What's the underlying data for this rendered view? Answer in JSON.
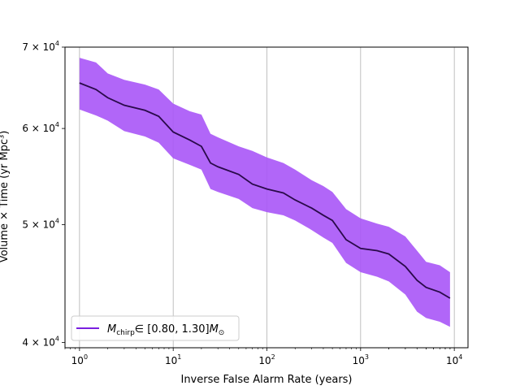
{
  "chart_data": {
    "type": "area",
    "xlabel": "Inverse False Alarm Rate (years)",
    "ylabel": "Volume × Time (yr Mpc³)",
    "x_scale": "log",
    "y_scale": "log",
    "xlim": [
      0.7,
      14000
    ],
    "ylim": [
      39600,
      70000
    ],
    "grid": "x-major",
    "legend_placement": "lower-left",
    "x_ticks": [
      {
        "value": 1,
        "base": "10",
        "exp": "0"
      },
      {
        "value": 10,
        "base": "10",
        "exp": "1"
      },
      {
        "value": 100,
        "base": "10",
        "exp": "2"
      },
      {
        "value": 1000,
        "base": "10",
        "exp": "3"
      },
      {
        "value": 10000,
        "base": "10",
        "exp": "4"
      }
    ],
    "y_ticks": [
      {
        "value": 40000,
        "mant": "4 × 10",
        "exp": "4"
      },
      {
        "value": 50000,
        "mant": "5 × 10",
        "exp": "4"
      },
      {
        "value": 60000,
        "mant": "6 × 10",
        "exp": "4"
      },
      {
        "value": 70000,
        "mant": "7 × 10",
        "exp": "4"
      }
    ],
    "series": [
      {
        "name": "M_chirp ∈ [0.80, 1.30] M_⊙",
        "legend": {
          "symbol": "M",
          "sub": "chirp",
          "range": "∈ [0.80, 1.30]",
          "unit": "M",
          "unit_sub": "⊙"
        },
        "line_color": "#2a0a4a",
        "band_color": "#a855f7",
        "legend_color": "#7a1fe0",
        "x": [
          1,
          1.5,
          2,
          3,
          5,
          7,
          10,
          15,
          20,
          25,
          30,
          50,
          70,
          100,
          150,
          200,
          300,
          400,
          500,
          700,
          1000,
          1500,
          2000,
          3000,
          4000,
          5000,
          7000,
          9000
        ],
        "y": [
          65400,
          64600,
          63600,
          62700,
          62100,
          61400,
          59600,
          58700,
          58000,
          56200,
          55800,
          55000,
          54000,
          53500,
          53100,
          52400,
          51600,
          50900,
          50400,
          48600,
          47800,
          47600,
          47300,
          46200,
          45000,
          44400,
          44000,
          43500
        ],
        "y_upper": [
          68600,
          68000,
          66600,
          65800,
          65200,
          64600,
          62900,
          62000,
          61600,
          59400,
          59000,
          58000,
          57500,
          56800,
          56200,
          55500,
          54400,
          53800,
          53200,
          51500,
          50600,
          50100,
          49800,
          48900,
          47600,
          46600,
          46300,
          45700
        ],
        "y_lower": [
          62200,
          61500,
          60900,
          59700,
          59100,
          58400,
          56700,
          56000,
          55500,
          53500,
          53200,
          52500,
          51600,
          51200,
          50900,
          50400,
          49500,
          48800,
          48300,
          46500,
          45700,
          45300,
          44900,
          43800,
          42400,
          41900,
          41600,
          41200
        ]
      }
    ]
  }
}
